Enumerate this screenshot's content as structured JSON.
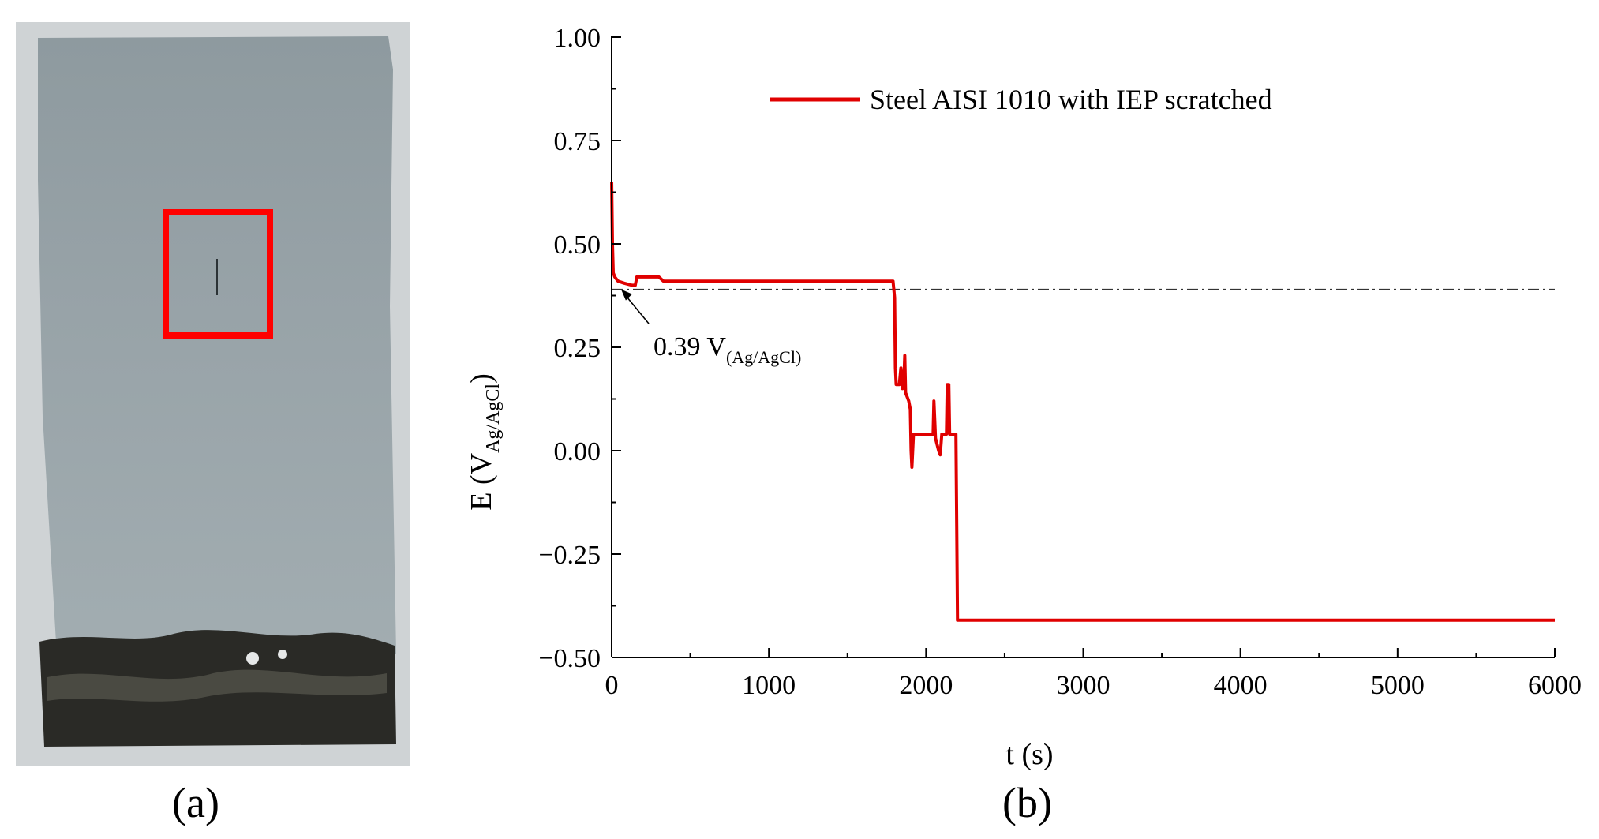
{
  "panels": {
    "a_label": "(a)",
    "b_label": "(b)"
  },
  "colors": {
    "series": "#e00000",
    "highlight_box": "#ff0000",
    "reference_line": "#333333"
  },
  "chart_data": {
    "type": "line",
    "xlabel": "t (s)",
    "ylabel": {
      "main": "E (V",
      "sub": "Ag/AgCl",
      "close": ")"
    },
    "xlim": [
      0,
      6000
    ],
    "ylim": [
      -0.5,
      1.0
    ],
    "x_ticks": [
      "0",
      "1000",
      "2000",
      "3000",
      "4000",
      "5000",
      "6000"
    ],
    "y_ticks": [
      "1.00",
      "0.75",
      "0.50",
      "0.25",
      "0.00",
      "−0.25",
      "−0.50"
    ],
    "legend_position": "top-right",
    "grid": false,
    "reference_line": {
      "y": 0.39,
      "style": "dash-dot"
    },
    "annotation": {
      "text": "0.39 V",
      "sub": "(Ag/AgCl)",
      "point_x": 60,
      "point_y": 0.39
    },
    "series": [
      {
        "name": "Steel AISI 1010 with IEP scratched",
        "points": [
          [
            0,
            0.65
          ],
          [
            5,
            0.5
          ],
          [
            10,
            0.43
          ],
          [
            20,
            0.42
          ],
          [
            40,
            0.41
          ],
          [
            80,
            0.405
          ],
          [
            130,
            0.4
          ],
          [
            150,
            0.4
          ],
          [
            160,
            0.42
          ],
          [
            200,
            0.42
          ],
          [
            300,
            0.42
          ],
          [
            330,
            0.41
          ],
          [
            1000,
            0.41
          ],
          [
            1790,
            0.41
          ],
          [
            1800,
            0.37
          ],
          [
            1805,
            0.2
          ],
          [
            1810,
            0.16
          ],
          [
            1830,
            0.16
          ],
          [
            1840,
            0.2
          ],
          [
            1850,
            0.15
          ],
          [
            1860,
            0.18
          ],
          [
            1865,
            0.23
          ],
          [
            1870,
            0.14
          ],
          [
            1890,
            0.12
          ],
          [
            1900,
            0.1
          ],
          [
            1905,
            0.0
          ],
          [
            1910,
            -0.04
          ],
          [
            1920,
            0.04
          ],
          [
            2000,
            0.04
          ],
          [
            2045,
            0.04
          ],
          [
            2050,
            0.12
          ],
          [
            2060,
            0.03
          ],
          [
            2080,
            0.0
          ],
          [
            2090,
            -0.01
          ],
          [
            2100,
            0.04
          ],
          [
            2130,
            0.04
          ],
          [
            2135,
            0.16
          ],
          [
            2145,
            0.16
          ],
          [
            2150,
            0.04
          ],
          [
            2170,
            0.04
          ],
          [
            2190,
            0.04
          ],
          [
            2195,
            -0.18
          ],
          [
            2200,
            -0.41
          ],
          [
            6000,
            -0.41
          ]
        ]
      }
    ]
  }
}
